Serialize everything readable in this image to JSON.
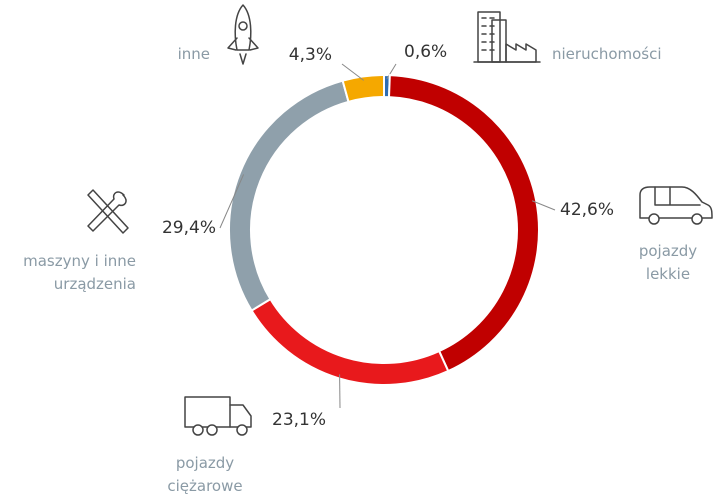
{
  "chart_data": {
    "type": "pie",
    "donut": true,
    "categories": [
      "nieruchomości",
      "pojazdy lekkie",
      "pojazdy ciężarowe",
      "maszyny i inne urządzenia",
      "inne"
    ],
    "values": [
      0.6,
      42.6,
      23.1,
      29.4,
      4.3
    ],
    "value_labels": [
      "0,6%",
      "42,6%",
      "23,1%",
      "29,4%",
      "4,3%"
    ],
    "colors": [
      "#2e6db4",
      "#c00000",
      "#e8191c",
      "#8fa0ab",
      "#f5a800"
    ]
  }
}
